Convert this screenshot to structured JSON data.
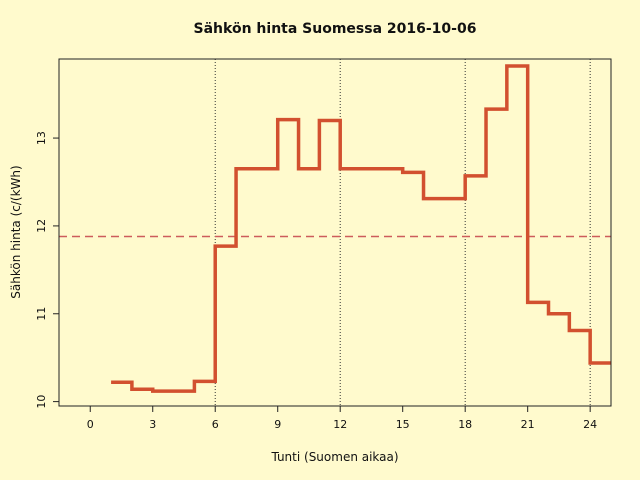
{
  "chart_data": {
    "type": "line",
    "step": true,
    "title": "Sähkön hinta Suomessa 2016-10-06",
    "xlabel": "Tunti (Suomen aikaa)",
    "ylabel": "Sähkön hinta (c/(kWh)",
    "xlim": [
      -1.5,
      25
    ],
    "ylim": [
      9.95,
      13.9
    ],
    "xticks": [
      0,
      3,
      6,
      9,
      12,
      15,
      18,
      21,
      24
    ],
    "yticks": [
      10,
      11,
      12,
      13
    ],
    "vertical_reference_lines": [
      6,
      12,
      18,
      24
    ],
    "horizontal_reference_line": {
      "value": 11.88,
      "style": "dashed",
      "color": "#CD5C5C"
    },
    "series": [
      {
        "color": "#D2502F",
        "hours": [
          1,
          2,
          3,
          4,
          5,
          6,
          7,
          8,
          9,
          10,
          11,
          12,
          13,
          14,
          15,
          16,
          17,
          18,
          19,
          20,
          21,
          22,
          23,
          24
        ],
        "values": [
          10.22,
          10.14,
          10.12,
          10.12,
          10.23,
          11.77,
          12.65,
          12.65,
          13.21,
          12.65,
          13.2,
          12.65,
          12.65,
          12.65,
          12.61,
          12.31,
          12.31,
          12.57,
          13.33,
          13.82,
          11.13,
          11.0,
          10.81,
          10.44
        ],
        "end_hour": 25
      }
    ]
  }
}
